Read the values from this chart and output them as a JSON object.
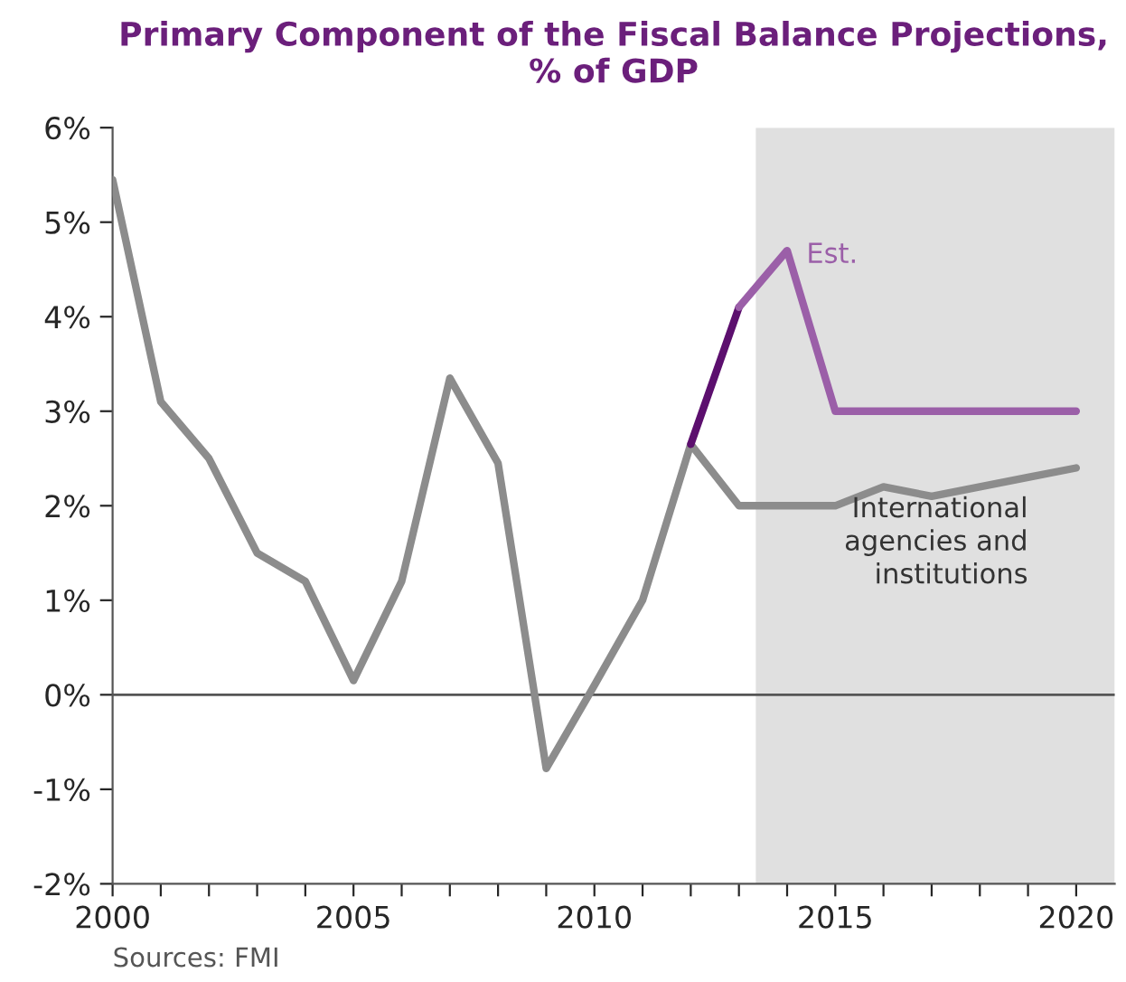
{
  "chart_data": {
    "type": "line",
    "title": "Primary Component of the Fiscal Balance Projections,\n% of GDP",
    "x": [
      2000,
      2001,
      2002,
      2003,
      2004,
      2005,
      2006,
      2007,
      2008,
      2009,
      2010,
      2011,
      2012,
      2013,
      2014,
      2015,
      2016,
      2017,
      2018,
      2019,
      2020
    ],
    "series": [
      {
        "name": "International\nagencies and\ninstitutions",
        "color": "#8c8c8c",
        "values": [
          5.45,
          3.1,
          2.5,
          1.5,
          1.2,
          0.15,
          1.2,
          3.35,
          2.45,
          -0.78,
          0.1,
          1.0,
          2.65,
          2.0,
          2.0,
          2.0,
          2.2,
          2.1,
          2.2,
          2.3,
          2.4
        ]
      },
      {
        "color": "#5c0f6e",
        "x": [
          2012,
          2013
        ],
        "values": [
          2.65,
          4.1
        ]
      },
      {
        "name": "Est.",
        "color": "#9b5fa8",
        "x": [
          2013,
          2014,
          2015,
          2016,
          2017,
          2018,
          2019,
          2020
        ],
        "values": [
          4.1,
          4.7,
          3.0,
          3.0,
          3.0,
          3.0,
          3.0,
          3.0
        ]
      }
    ],
    "xlim": [
      2000,
      2020.8
    ],
    "xticks": [
      2000,
      {
        "value": 2001,
        "label": null
      },
      {
        "value": 2002,
        "label": null
      },
      {
        "value": 2003,
        "label": null
      },
      {
        "value": 2004,
        "label": null
      },
      2005,
      {
        "value": 2006,
        "label": null
      },
      {
        "value": 2007,
        "label": null
      },
      {
        "value": 2008,
        "label": null
      },
      {
        "value": 2009,
        "label": null
      },
      2010,
      {
        "value": 2011,
        "label": null
      },
      {
        "value": 2012,
        "label": null
      },
      {
        "value": 2013,
        "label": null
      },
      {
        "value": 2014,
        "label": null
      },
      2015,
      {
        "value": 2016,
        "label": null
      },
      {
        "value": 2017,
        "label": null
      },
      {
        "value": 2018,
        "label": null
      },
      {
        "value": 2019,
        "label": null
      },
      2020
    ],
    "ylim": [
      -2,
      6
    ],
    "yticks": [
      {
        "value": -2,
        "label": "-2%"
      },
      {
        "value": -1,
        "label": "-1%"
      },
      {
        "value": 0,
        "label": "0%"
      },
      {
        "value": 1,
        "label": "1%"
      },
      {
        "value": 2,
        "label": "2%"
      },
      {
        "value": 3,
        "label": "3%"
      },
      {
        "value": 4,
        "label": "4%"
      },
      {
        "value": 5,
        "label": "5%"
      },
      {
        "value": 6,
        "label": "6%"
      }
    ],
    "bands": [
      {
        "axis": "x",
        "from": 2013.35,
        "to": 2020.8,
        "color": "#e0e0e0"
      }
    ],
    "ref_lines": [
      {
        "axis": "y",
        "value": 0,
        "color": "#555555"
      }
    ],
    "grid": false,
    "legend": false,
    "marker": "none",
    "line_style": "solid",
    "annotations": [
      "Sources: FMI"
    ]
  }
}
